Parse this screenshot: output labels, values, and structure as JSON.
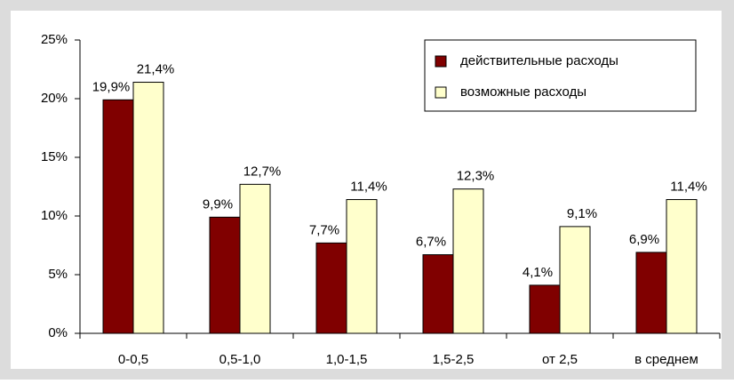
{
  "chart_data": {
    "type": "bar",
    "categories": [
      "0-0,5",
      "0,5-1,0",
      "1,0-1,5",
      "1,5-2,5",
      "от 2,5",
      "в среднем"
    ],
    "series": [
      {
        "name": "действительные расходы",
        "color": "#800000",
        "values": [
          19.9,
          9.9,
          7.7,
          6.7,
          4.1,
          6.9
        ],
        "value_labels": [
          "19,9%",
          "9,9%",
          "7,7%",
          "6,7%",
          "4,1%",
          "6,9%"
        ]
      },
      {
        "name": "возможные расходы",
        "color": "#ffffcc",
        "values": [
          21.4,
          12.7,
          11.4,
          12.3,
          9.1,
          11.4
        ],
        "value_labels": [
          "21,4%",
          "12,7%",
          "11,4%",
          "12,3%",
          "9,1%",
          "11,4%"
        ]
      }
    ],
    "ylim": [
      0,
      25
    ],
    "yticks": [
      {
        "value": 0,
        "label": "0%"
      },
      {
        "value": 5,
        "label": "5%"
      },
      {
        "value": 10,
        "label": "10%"
      },
      {
        "value": 15,
        "label": "15%"
      },
      {
        "value": 20,
        "label": "20%"
      },
      {
        "value": 25,
        "label": "25%"
      }
    ],
    "legend": "top-right"
  }
}
